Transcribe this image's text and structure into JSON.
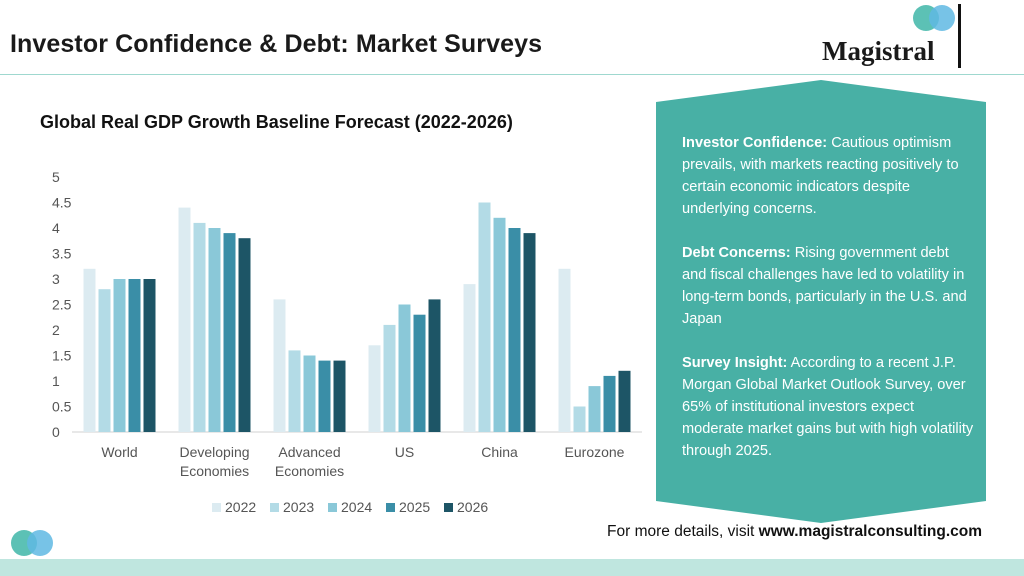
{
  "header": {
    "title": "Investor Confidence & Debt: Market Surveys",
    "brand": "Magistral"
  },
  "colors": {
    "accent": "#48b0a5",
    "logo_teal": "#3fb6a8",
    "logo_blue": "#5fb8e3",
    "footer_band": "#bfe6df"
  },
  "chart_data": {
    "type": "bar",
    "title": "Global Real GDP Growth Baseline Forecast (2022-2026)",
    "xlabel": "",
    "ylabel": "",
    "ylim": [
      0,
      5
    ],
    "yticks": [
      "0",
      "0.5",
      "1",
      "1.5",
      "2",
      "2.5",
      "3",
      "3.5",
      "4",
      "4.5",
      "5"
    ],
    "categories": [
      [
        "World"
      ],
      [
        "Developing",
        "Economies"
      ],
      [
        "Advanced",
        "Economies"
      ],
      [
        "US"
      ],
      [
        "China"
      ],
      [
        "Eurozone"
      ]
    ],
    "series": [
      {
        "name": "2022",
        "color": "#dcebf1",
        "values": [
          3.2,
          4.4,
          2.6,
          1.7,
          2.9,
          3.2
        ]
      },
      {
        "name": "2023",
        "color": "#b3dbe6",
        "values": [
          2.8,
          4.1,
          1.6,
          2.1,
          4.5,
          0.5
        ]
      },
      {
        "name": "2024",
        "color": "#8ac8d8",
        "values": [
          3.0,
          4.0,
          1.5,
          2.5,
          4.2,
          0.9
        ]
      },
      {
        "name": "2025",
        "color": "#3a8ea7",
        "values": [
          3.0,
          3.9,
          1.4,
          2.3,
          4.0,
          1.1
        ]
      },
      {
        "name": "2026",
        "color": "#1d5566",
        "values": [
          3.0,
          3.8,
          1.4,
          2.6,
          3.9,
          1.2
        ]
      }
    ],
    "legend_position": "bottom"
  },
  "callout": {
    "sections": [
      {
        "heading": "Investor Confidence:",
        "text": " Cautious optimism prevails, with markets reacting positively to certain economic indicators despite underlying concerns."
      },
      {
        "heading": "Debt Concerns:",
        "text": " Rising government debt and fiscal challenges have led to volatility in long-term bonds, particularly in the U.S. and Japan"
      },
      {
        "heading": "Survey Insight:",
        "text": " According to a recent J.P. Morgan Global Market Outlook Survey, over 65% of institutional investors expect moderate market gains but with high volatility through 2025."
      }
    ]
  },
  "footer": {
    "prefix": "For more details, visit ",
    "link": "www.magistralconsulting.com"
  }
}
